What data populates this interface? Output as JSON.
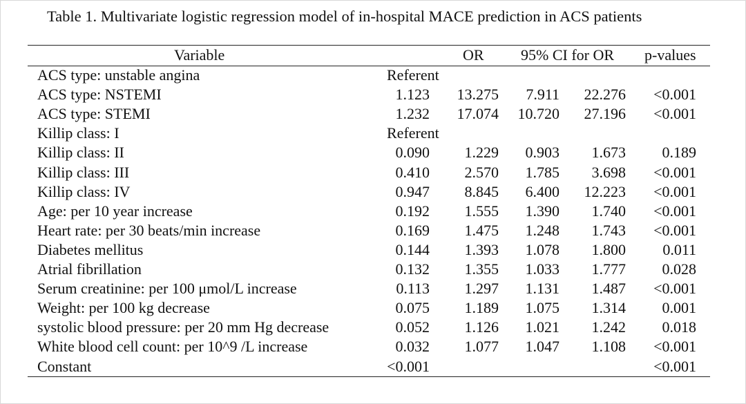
{
  "title": "Table 1. Multivariate logistic regression model of in-hospital MACE prediction in ACS patients",
  "headers": {
    "variable": "Variable",
    "or": "OR",
    "ci": "95% CI for OR",
    "p": "p-values"
  },
  "rows": [
    {
      "variable": "ACS type: unstable angina",
      "b": "Referent",
      "or": "",
      "ci_low": "",
      "ci_high": "",
      "p": ""
    },
    {
      "variable": "ACS type: NSTEMI",
      "b": "1.123",
      "or": "13.275",
      "ci_low": "7.911",
      "ci_high": "22.276",
      "p": "<0.001"
    },
    {
      "variable": "ACS type: STEMI",
      "b": "1.232",
      "or": "17.074",
      "ci_low": "10.720",
      "ci_high": "27.196",
      "p": "<0.001"
    },
    {
      "variable": "Killip class: I",
      "b": "Referent",
      "or": "",
      "ci_low": "",
      "ci_high": "",
      "p": ""
    },
    {
      "variable": "Killip class: II",
      "b": "0.090",
      "or": "1.229",
      "ci_low": "0.903",
      "ci_high": "1.673",
      "p": "0.189"
    },
    {
      "variable": "Killip class: III",
      "b": "0.410",
      "or": "2.570",
      "ci_low": "1.785",
      "ci_high": "3.698",
      "p": "<0.001"
    },
    {
      "variable": "Killip class: IV",
      "b": "0.947",
      "or": "8.845",
      "ci_low": "6.400",
      "ci_high": "12.223",
      "p": "<0.001"
    },
    {
      "variable": "Age: per 10 year increase",
      "b": "0.192",
      "or": "1.555",
      "ci_low": "1.390",
      "ci_high": "1.740",
      "p": "<0.001"
    },
    {
      "variable": "Heart rate: per 30 beats/min increase",
      "b": "0.169",
      "or": "1.475",
      "ci_low": "1.248",
      "ci_high": "1.743",
      "p": "<0.001"
    },
    {
      "variable": "Diabetes mellitus",
      "b": "0.144",
      "or": "1.393",
      "ci_low": "1.078",
      "ci_high": "1.800",
      "p": "0.011"
    },
    {
      "variable": "Atrial fibrillation",
      "b": "0.132",
      "or": "1.355",
      "ci_low": "1.033",
      "ci_high": "1.777",
      "p": "0.028"
    },
    {
      "variable": "Serum creatinine: per 100 μmol/L increase",
      "b": "0.113",
      "or": "1.297",
      "ci_low": "1.131",
      "ci_high": "1.487",
      "p": "<0.001"
    },
    {
      "variable": "Weight: per 100 kg decrease",
      "b": "0.075",
      "or": "1.189",
      "ci_low": "1.075",
      "ci_high": "1.314",
      "p": "0.001"
    },
    {
      "variable": "systolic blood pressure: per 20 mm Hg decrease",
      "b": "0.052",
      "or": "1.126",
      "ci_low": "1.021",
      "ci_high": "1.242",
      "p": "0.018"
    },
    {
      "variable": "White blood cell count: per 10^9 /L increase",
      "b": "0.032",
      "or": "1.077",
      "ci_low": "1.047",
      "ci_high": "1.108",
      "p": "<0.001"
    },
    {
      "variable": "Constant",
      "b": "<0.001",
      "or": "",
      "ci_low": "",
      "ci_high": "",
      "p": "<0.001"
    }
  ]
}
